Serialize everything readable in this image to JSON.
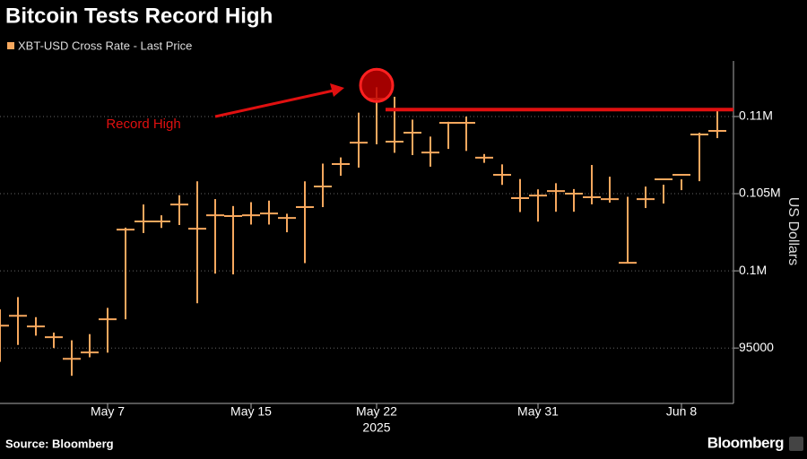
{
  "chart_data": {
    "type": "hlc",
    "title": "Bitcoin Tests Record High",
    "y_label": "US Dollars",
    "source": "Source: Bloomberg",
    "brand": "Bloomberg",
    "annotation": "Record High",
    "record_line": 110450,
    "x": [
      "2025-05-01",
      "2025-05-02",
      "2025-05-03",
      "2025-05-04",
      "2025-05-05",
      "2025-05-06",
      "2025-05-07",
      "2025-05-08",
      "2025-05-09",
      "2025-05-10",
      "2025-05-11",
      "2025-05-12",
      "2025-05-13",
      "2025-05-14",
      "2025-05-15",
      "2025-05-16",
      "2025-05-17",
      "2025-05-18",
      "2025-05-19",
      "2025-05-20",
      "2025-05-21",
      "2025-05-22",
      "2025-05-23",
      "2025-05-24",
      "2025-05-25",
      "2025-05-26",
      "2025-05-27",
      "2025-05-28",
      "2025-05-29",
      "2025-05-30",
      "2025-05-31",
      "2025-06-01",
      "2025-06-02",
      "2025-06-03",
      "2025-06-04",
      "2025-06-05",
      "2025-06-06",
      "2025-06-07",
      "2025-06-08",
      "2025-06-09",
      "2025-06-10"
    ],
    "series": [
      {
        "name": "XBT-USD Cross Rate - Last Price",
        "color": "#f7a85e",
        "high": [
          97500,
          98300,
          97000,
          96000,
          95500,
          95900,
          97600,
          102800,
          104300,
          103600,
          104900,
          105800,
          104650,
          104200,
          104450,
          104550,
          103700,
          105800,
          106950,
          107350,
          110250,
          111900,
          111280,
          109800,
          108700,
          109660,
          110000,
          107570,
          106900,
          105950,
          105280,
          105680,
          105300,
          106860,
          106100,
          104800,
          105460,
          105580,
          105930,
          108950,
          110450
        ],
        "low": [
          94100,
          95200,
          95800,
          95000,
          93200,
          94400,
          94700,
          96860,
          102450,
          102780,
          102970,
          97900,
          99820,
          99770,
          103000,
          103000,
          102500,
          100500,
          104130,
          106160,
          106690,
          108200,
          107650,
          107500,
          106750,
          107900,
          107770,
          107000,
          105570,
          103810,
          103190,
          103830,
          103830,
          104310,
          104420,
          100520,
          104070,
          104360,
          105230,
          105810,
          108600
        ],
        "close": [
          96450,
          97090,
          96400,
          95700,
          94300,
          94710,
          96860,
          102670,
          103200,
          103200,
          104300,
          102730,
          103600,
          103550,
          103600,
          103720,
          103430,
          104130,
          105470,
          106920,
          108310,
          111160,
          108370,
          108950,
          107670,
          109590,
          109590,
          107330,
          106220,
          104710,
          104880,
          105170,
          105000,
          104770,
          104650,
          100520,
          104650,
          105930,
          106220,
          108840,
          109070
        ]
      }
    ],
    "xlim": [
      "2025-05-01",
      "2025-06-10"
    ],
    "xticks": [
      {
        "value": "2025-05-07",
        "label": "May 7"
      },
      {
        "value": "2025-05-15",
        "label": "May 15"
      },
      {
        "value": "2025-05-22",
        "label": "May 22"
      },
      {
        "value": "2025-05-31",
        "label": "May 31"
      },
      {
        "value": "2025-06-08",
        "label": "Jun 8"
      }
    ],
    "x_year": "2025",
    "ylim": [
      91700,
      113600
    ],
    "yticks": [
      95000,
      {
        "value": 100000,
        "label": "0.1M"
      },
      {
        "value": 105000,
        "label": "0.105M"
      },
      {
        "value": 110000,
        "label": "0.11M"
      }
    ],
    "grid": true
  }
}
